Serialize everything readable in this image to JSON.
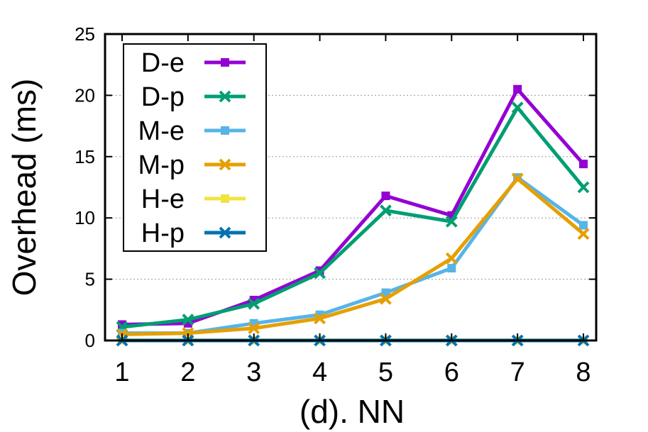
{
  "chart_data": {
    "type": "line",
    "title": "",
    "xlabel": "(d). NN",
    "ylabel": "Overhead (ms)",
    "categories": [
      "1",
      "2",
      "3",
      "4",
      "5",
      "6",
      "7",
      "8"
    ],
    "x": [
      1,
      2,
      3,
      4,
      5,
      6,
      7,
      8
    ],
    "ylim": [
      0,
      25
    ],
    "yticks": [
      "0",
      "5",
      "10",
      "15",
      "20",
      "25"
    ],
    "ytick_values": [
      0,
      5,
      10,
      15,
      20,
      25
    ],
    "grid": "horizontal-dotted",
    "legend_position": "top-left",
    "series": [
      {
        "name": "D-e",
        "color": "#9400d3",
        "marker": "square",
        "values": [
          1.3,
          1.4,
          3.3,
          5.7,
          11.8,
          10.2,
          20.5,
          14.4
        ]
      },
      {
        "name": "D-p",
        "color": "#009e73",
        "marker": "x",
        "values": [
          1.1,
          1.7,
          3.0,
          5.5,
          10.6,
          9.7,
          19.0,
          12.5
        ]
      },
      {
        "name": "M-e",
        "color": "#56b4e9",
        "marker": "square",
        "values": [
          0.6,
          0.6,
          1.4,
          2.1,
          3.9,
          5.9,
          13.3,
          9.4
        ]
      },
      {
        "name": "M-p",
        "color": "#e69f00",
        "marker": "x",
        "values": [
          0.5,
          0.6,
          1.0,
          1.8,
          3.4,
          6.7,
          13.2,
          8.7
        ]
      },
      {
        "name": "H-e",
        "color": "#f0e442",
        "marker": "square",
        "values": [
          0.02,
          0.02,
          0.02,
          0.02,
          0.02,
          0.02,
          0.02,
          0.02
        ]
      },
      {
        "name": "H-p",
        "color": "#0072b2",
        "marker": "x",
        "values": [
          0.0,
          0.0,
          0.0,
          0.0,
          0.0,
          0.0,
          0.0,
          0.0
        ]
      }
    ]
  }
}
